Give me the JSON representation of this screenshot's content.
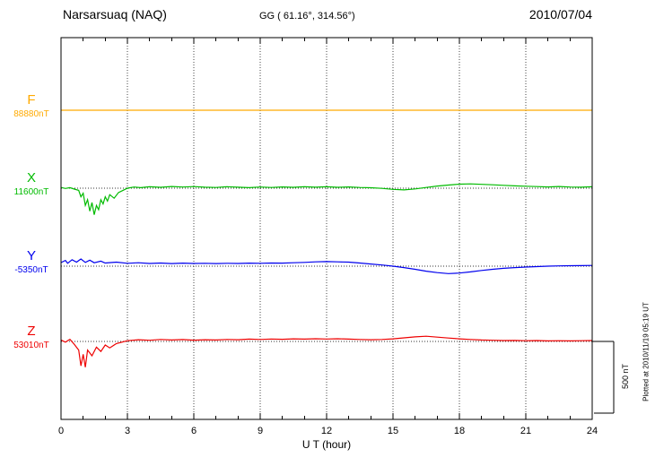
{
  "header": {
    "station": "Narsarsuaq (NAQ)",
    "coords": "GG ( 61.16°, 314.56°)",
    "date": "2010/07/04"
  },
  "footer": {
    "plotted_at": "Plotted at 2010/11/19 05:19 UT"
  },
  "chart_data": {
    "type": "line",
    "title": "Narsarsuaq (NAQ) magnetogram",
    "xlabel": "U T (hour)",
    "x_range": [
      0,
      24
    ],
    "x_ticks": [
      0,
      3,
      6,
      9,
      12,
      15,
      18,
      21,
      24
    ],
    "grid": "dotted vertical every 3 hours, dotted horizontal baseline per component",
    "scale_bar": {
      "label": "500 nT",
      "nT": 500
    },
    "series": [
      {
        "id": "F",
        "name": "F",
        "baseline_label": "88880nT",
        "color": "#ffaa00",
        "points": [
          [
            0,
            0
          ],
          [
            6,
            0
          ],
          [
            12,
            0
          ],
          [
            18,
            0
          ],
          [
            24,
            0
          ]
        ]
      },
      {
        "id": "X",
        "name": "X",
        "baseline_label": "11600nT",
        "color": "#00bb00",
        "points": [
          [
            0,
            5
          ],
          [
            0.2,
            -2
          ],
          [
            0.4,
            4
          ],
          [
            0.6,
            -6
          ],
          [
            0.8,
            -15
          ],
          [
            0.9,
            -60
          ],
          [
            1,
            -35
          ],
          [
            1.1,
            -120
          ],
          [
            1.2,
            -80
          ],
          [
            1.3,
            -160
          ],
          [
            1.4,
            -100
          ],
          [
            1.5,
            -185
          ],
          [
            1.6,
            -120
          ],
          [
            1.7,
            -150
          ],
          [
            1.8,
            -80
          ],
          [
            1.9,
            -110
          ],
          [
            2,
            -60
          ],
          [
            2.1,
            -90
          ],
          [
            2.2,
            -45
          ],
          [
            2.4,
            -70
          ],
          [
            2.6,
            -30
          ],
          [
            2.8,
            -15
          ],
          [
            3,
            0
          ],
          [
            3.3,
            8
          ],
          [
            3.6,
            4
          ],
          [
            4,
            10
          ],
          [
            4.5,
            6
          ],
          [
            5,
            12
          ],
          [
            5.5,
            8
          ],
          [
            6,
            11
          ],
          [
            6.5,
            7
          ],
          [
            7,
            5
          ],
          [
            7.5,
            10
          ],
          [
            8,
            7
          ],
          [
            8.5,
            4
          ],
          [
            9,
            8
          ],
          [
            9.5,
            5
          ],
          [
            10,
            9
          ],
          [
            10.5,
            6
          ],
          [
            11,
            10
          ],
          [
            11.5,
            7
          ],
          [
            12,
            10
          ],
          [
            12.5,
            6
          ],
          [
            13,
            9
          ],
          [
            13.5,
            5
          ],
          [
            14,
            3
          ],
          [
            14.5,
            -1
          ],
          [
            15,
            -8
          ],
          [
            15.5,
            -12
          ],
          [
            16,
            -5
          ],
          [
            16.5,
            5
          ],
          [
            17,
            15
          ],
          [
            17.5,
            22
          ],
          [
            18,
            28
          ],
          [
            18.5,
            30
          ],
          [
            19,
            27
          ],
          [
            19.5,
            24
          ],
          [
            20,
            20
          ],
          [
            20.5,
            16
          ],
          [
            21,
            14
          ],
          [
            21.5,
            11
          ],
          [
            22,
            9
          ],
          [
            22.5,
            12
          ],
          [
            23,
            8
          ],
          [
            23.5,
            7
          ],
          [
            24,
            10
          ]
        ]
      },
      {
        "id": "Y",
        "name": "Y",
        "baseline_label": "-5350nT",
        "color": "#0000ee",
        "points": [
          [
            0,
            25
          ],
          [
            0.2,
            40
          ],
          [
            0.3,
            20
          ],
          [
            0.5,
            45
          ],
          [
            0.7,
            28
          ],
          [
            0.9,
            50
          ],
          [
            1.1,
            26
          ],
          [
            1.3,
            42
          ],
          [
            1.5,
            24
          ],
          [
            1.8,
            35
          ],
          [
            2,
            22
          ],
          [
            2.5,
            28
          ],
          [
            3,
            20
          ],
          [
            3.5,
            24
          ],
          [
            4,
            19
          ],
          [
            4.5,
            22
          ],
          [
            5,
            18
          ],
          [
            5.5,
            21
          ],
          [
            6,
            19
          ],
          [
            6.5,
            20
          ],
          [
            7,
            18
          ],
          [
            7.5,
            20
          ],
          [
            8,
            19
          ],
          [
            8.5,
            21
          ],
          [
            9,
            20
          ],
          [
            9.5,
            22
          ],
          [
            10,
            21
          ],
          [
            10.5,
            24
          ],
          [
            11,
            26
          ],
          [
            11.5,
            30
          ],
          [
            12,
            32
          ],
          [
            12.5,
            30
          ],
          [
            13,
            28
          ],
          [
            13.5,
            22
          ],
          [
            14,
            15
          ],
          [
            14.5,
            8
          ],
          [
            15,
            0
          ],
          [
            15.5,
            -10
          ],
          [
            16,
            -22
          ],
          [
            16.5,
            -35
          ],
          [
            17,
            -45
          ],
          [
            17.5,
            -52
          ],
          [
            18,
            -48
          ],
          [
            18.5,
            -40
          ],
          [
            19,
            -30
          ],
          [
            19.5,
            -22
          ],
          [
            20,
            -15
          ],
          [
            20.5,
            -10
          ],
          [
            21,
            -6
          ],
          [
            21.5,
            -3
          ],
          [
            22,
            0
          ],
          [
            22.5,
            2
          ],
          [
            23,
            3
          ],
          [
            23.5,
            4
          ],
          [
            24,
            5
          ]
        ]
      },
      {
        "id": "Z",
        "name": "Z",
        "baseline_label": "53010nT",
        "color": "#ee0000",
        "points": [
          [
            0,
            10
          ],
          [
            0.2,
            -5
          ],
          [
            0.4,
            15
          ],
          [
            0.6,
            -20
          ],
          [
            0.8,
            -60
          ],
          [
            0.9,
            -170
          ],
          [
            1,
            -90
          ],
          [
            1.1,
            -180
          ],
          [
            1.2,
            -60
          ],
          [
            1.4,
            -100
          ],
          [
            1.6,
            -40
          ],
          [
            1.8,
            -70
          ],
          [
            2,
            -25
          ],
          [
            2.2,
            -45
          ],
          [
            2.5,
            -15
          ],
          [
            3,
            5
          ],
          [
            3.5,
            12
          ],
          [
            4,
            8
          ],
          [
            4.5,
            14
          ],
          [
            5,
            10
          ],
          [
            5.5,
            13
          ],
          [
            6,
            9
          ],
          [
            6.5,
            12
          ],
          [
            7,
            10
          ],
          [
            7.5,
            14
          ],
          [
            8,
            12
          ],
          [
            8.5,
            16
          ],
          [
            9,
            14
          ],
          [
            9.5,
            17
          ],
          [
            10,
            15
          ],
          [
            10.5,
            18
          ],
          [
            11,
            16
          ],
          [
            11.5,
            19
          ],
          [
            12,
            17
          ],
          [
            12.5,
            19
          ],
          [
            13,
            16
          ],
          [
            13.5,
            14
          ],
          [
            14,
            12
          ],
          [
            14.5,
            14
          ],
          [
            15,
            18
          ],
          [
            15.5,
            25
          ],
          [
            16,
            32
          ],
          [
            16.5,
            36
          ],
          [
            17,
            30
          ],
          [
            17.5,
            24
          ],
          [
            18,
            18
          ],
          [
            18.5,
            14
          ],
          [
            19,
            10
          ],
          [
            19.5,
            8
          ],
          [
            20,
            6
          ],
          [
            20.5,
            7
          ],
          [
            21,
            5
          ],
          [
            21.5,
            6
          ],
          [
            22,
            4
          ],
          [
            22.5,
            5
          ],
          [
            23,
            4
          ],
          [
            23.5,
            5
          ],
          [
            24,
            6
          ]
        ]
      }
    ]
  }
}
